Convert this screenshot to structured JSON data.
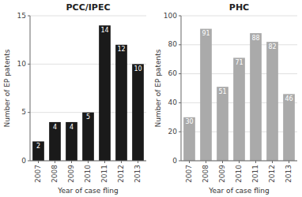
{
  "chart_data": [
    {
      "type": "bar",
      "title": "PCC/IPEC",
      "xlabel": "Year of case fling",
      "ylabel": "Number of EP patents",
      "categories": [
        "2007",
        "2008",
        "2009",
        "2010",
        "2011",
        "2012",
        "2013"
      ],
      "values": [
        2,
        4,
        4,
        5,
        14,
        12,
        10
      ],
      "color": "#1a1a1a",
      "ylim": [
        0,
        15
      ],
      "yticks": [
        0,
        5,
        10,
        15
      ],
      "grid": true,
      "data_labels": true
    },
    {
      "type": "bar",
      "title": "PHC",
      "xlabel": "Year of case fling",
      "ylabel": "Number of EP patents",
      "categories": [
        "2007",
        "2008",
        "2009",
        "2010",
        "2011",
        "2012",
        "2013"
      ],
      "values": [
        30,
        91,
        51,
        71,
        88,
        82,
        46
      ],
      "color": "#aaaaaa",
      "ylim": [
        0,
        100
      ],
      "yticks": [
        0,
        20,
        40,
        60,
        80,
        100
      ],
      "grid": true,
      "data_labels": true
    }
  ]
}
